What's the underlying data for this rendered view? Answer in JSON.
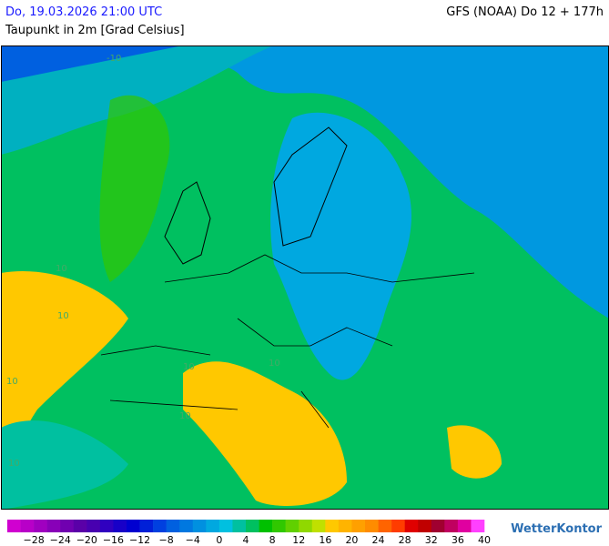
{
  "header": {
    "date": "Do, 19.03.2026 21:00 UTC",
    "model": "GFS (NOAA) Do 12 + 177h",
    "subtitle": "Taupunkt in 2m [Grad Celsius]"
  },
  "map": {
    "contour_labels": [
      "10",
      "10",
      "10",
      "10",
      "10",
      "10",
      "10",
      "-10"
    ]
  },
  "legend": {
    "colors": [
      "#d000d0",
      "#b800c8",
      "#a000c0",
      "#8800b8",
      "#7000b0",
      "#5a00a8",
      "#4800b0",
      "#3000c0",
      "#1800c8",
      "#0000d0",
      "#0020d8",
      "#0040e0",
      "#0060e0",
      "#0078e0",
      "#0090e0",
      "#00a8e0",
      "#00c0e0",
      "#00c0a0",
      "#00c060",
      "#00c000",
      "#30c800",
      "#60d000",
      "#90d800",
      "#c0e000",
      "#ffc800",
      "#ffb400",
      "#ffa000",
      "#ff8c00",
      "#ff6400",
      "#ff3c00",
      "#e00000",
      "#c00000",
      "#a00030",
      "#c00060",
      "#e000a0",
      "#ff40ff"
    ],
    "ticks": [
      "−28",
      "−24",
      "−20",
      "−16",
      "−12",
      "−8",
      "−4",
      "0",
      "4",
      "8",
      "12",
      "16",
      "20",
      "24",
      "28",
      "32",
      "36",
      "40"
    ]
  },
  "logo": "WetterKontor"
}
